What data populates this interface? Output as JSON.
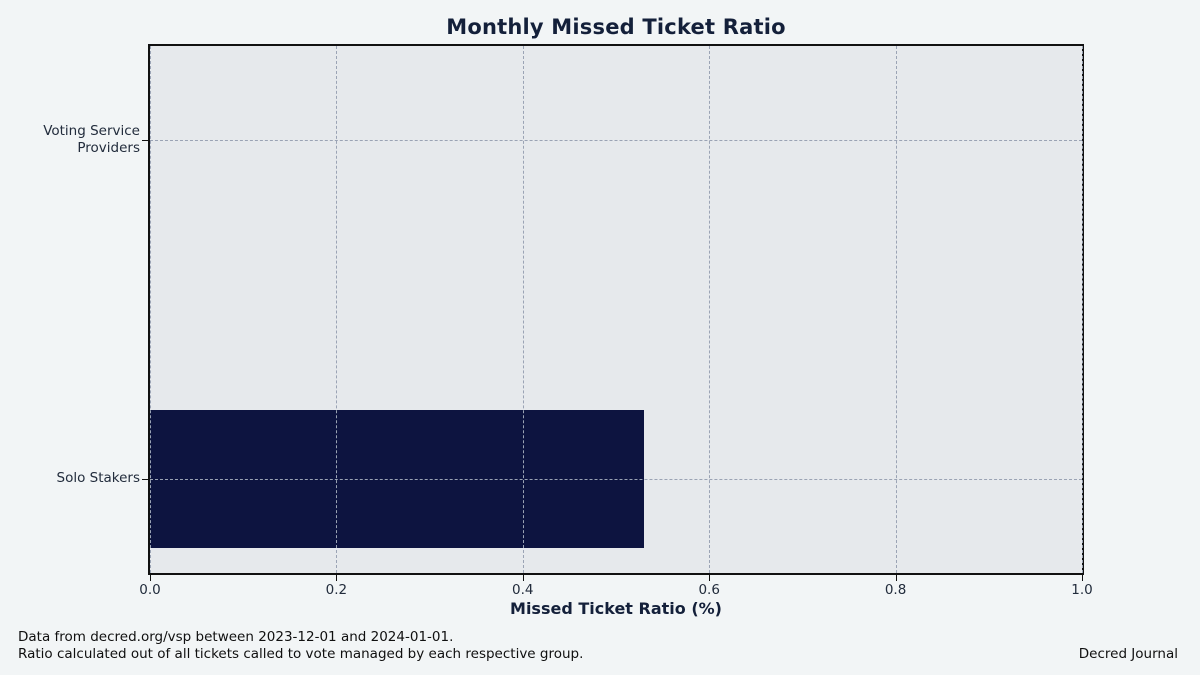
{
  "figure": {
    "background": "#f2f5f6",
    "plot_background": "#e6e9ec",
    "spine_color": "#111111",
    "grid_color": "#9aa3b4",
    "title_color": "#14203a",
    "tick_label_color": "#222c3c"
  },
  "chart_data": {
    "type": "bar",
    "orientation": "horizontal",
    "title": "Monthly Missed Ticket Ratio",
    "xlabel": "Missed Ticket Ratio (%)",
    "ylabel": "",
    "categories": [
      "Voting Service\nProviders",
      "Solo Stakers"
    ],
    "values": [
      0.0,
      0.53
    ],
    "bar_color": "#0d1440",
    "xlim": [
      0.0,
      1.0
    ],
    "xticks": [
      0.0,
      0.2,
      0.4,
      0.6,
      0.8,
      1.0
    ],
    "grid": true,
    "grid_style": "dashed",
    "legend": false
  },
  "footer": {
    "line1": "Data from decred.org/vsp between 2023-12-01 and 2024-01-01.",
    "line2": "Ratio calculated out of all tickets called to vote managed by each respective group.",
    "credit": "Decred Journal"
  }
}
